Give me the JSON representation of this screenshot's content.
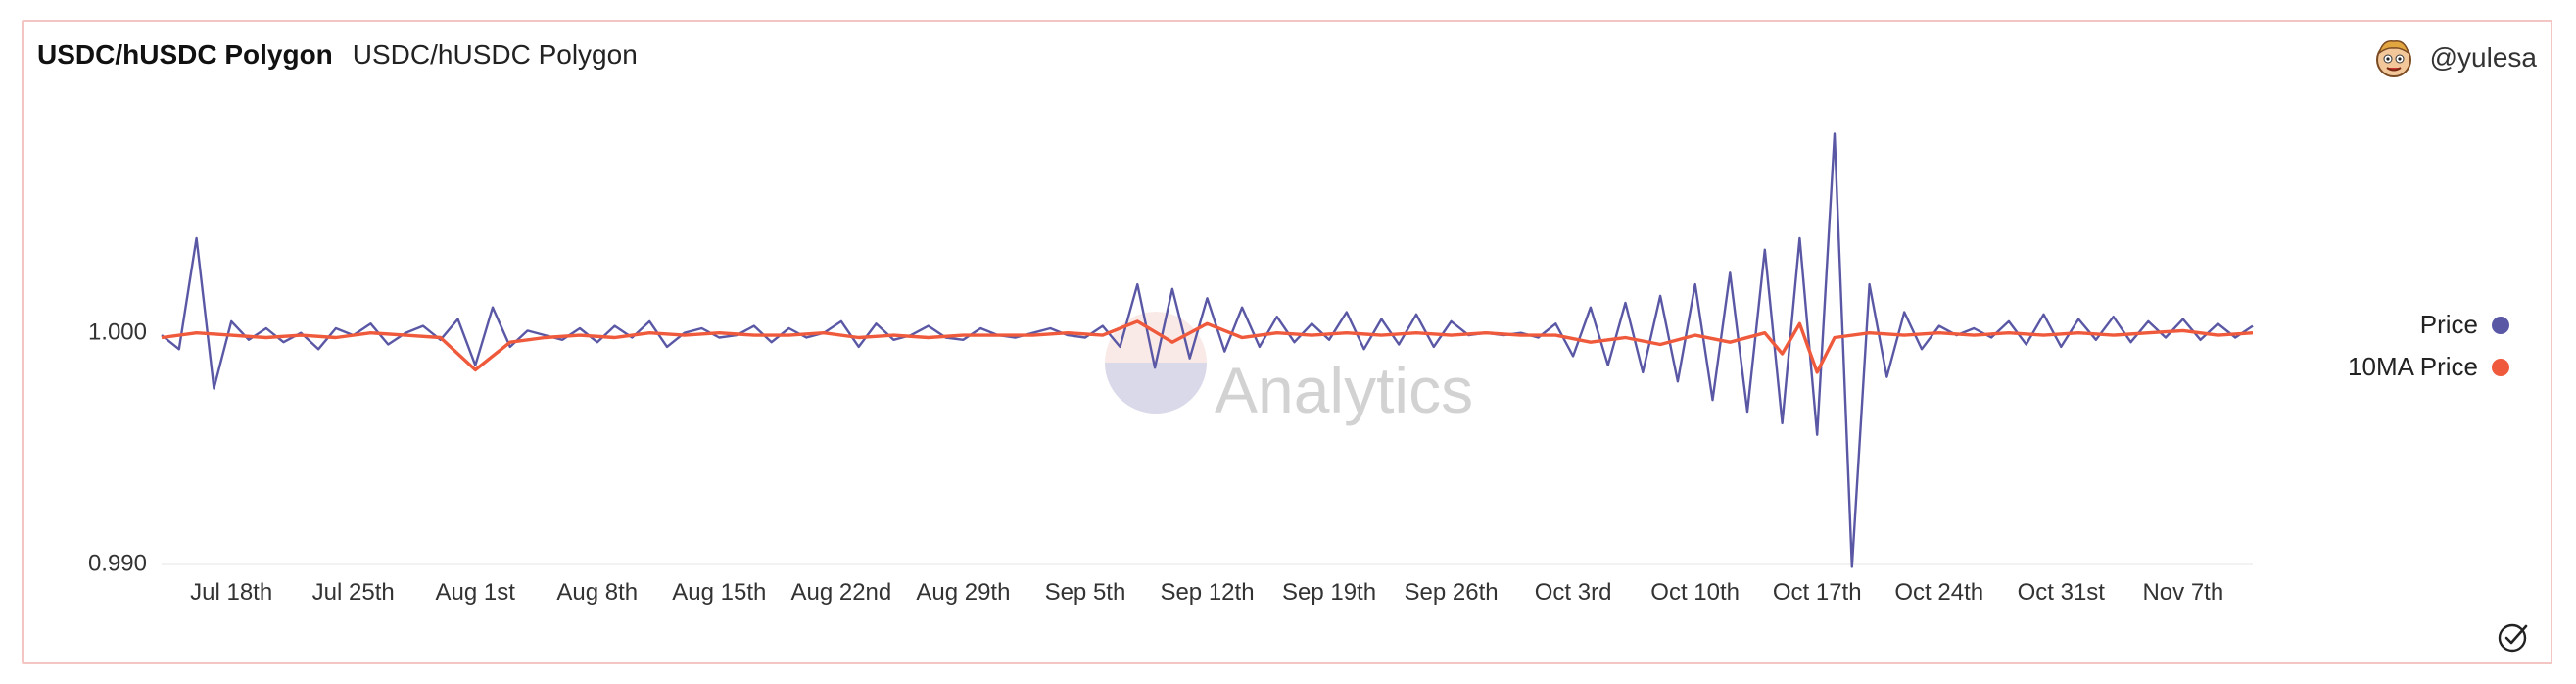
{
  "header": {
    "title": "USDC/hUSDC Polygon",
    "subtitle": "USDC/hUSDC Polygon"
  },
  "author": {
    "handle": "@yulesa",
    "avatar_icon": "cartoon-face-avatar"
  },
  "watermark": {
    "text": "Analytics"
  },
  "colors": {
    "price": "#5a58a5",
    "ma": "#f05a3c",
    "axis_text": "#333333",
    "border": "#f4c6c3"
  },
  "chart_data": {
    "type": "line",
    "title": "USDC/hUSDC Polygon",
    "xlabel": "",
    "ylabel": "",
    "ylim": [
      0.9899,
      1.0092
    ],
    "y_ticks": [
      {
        "value": 1.0,
        "label": "1.000"
      },
      {
        "value": 0.99,
        "label": "0.990"
      }
    ],
    "x_start": "2022-07-14",
    "x_end": "2022-11-11",
    "x_ticks": [
      {
        "date": "2022-07-18",
        "label": "Jul 18th"
      },
      {
        "date": "2022-07-25",
        "label": "Jul 25th"
      },
      {
        "date": "2022-08-01",
        "label": "Aug 1st"
      },
      {
        "date": "2022-08-08",
        "label": "Aug 8th"
      },
      {
        "date": "2022-08-15",
        "label": "Aug 15th"
      },
      {
        "date": "2022-08-22",
        "label": "Aug 22nd"
      },
      {
        "date": "2022-08-29",
        "label": "Aug 29th"
      },
      {
        "date": "2022-09-05",
        "label": "Sep 5th"
      },
      {
        "date": "2022-09-12",
        "label": "Sep 12th"
      },
      {
        "date": "2022-09-19",
        "label": "Sep 19th"
      },
      {
        "date": "2022-09-26",
        "label": "Sep 26th"
      },
      {
        "date": "2022-10-03",
        "label": "Oct 3rd"
      },
      {
        "date": "2022-10-10",
        "label": "Oct 10th"
      },
      {
        "date": "2022-10-17",
        "label": "Oct 17th"
      },
      {
        "date": "2022-10-24",
        "label": "Oct 24th"
      },
      {
        "date": "2022-10-31",
        "label": "Oct 31st"
      },
      {
        "date": "2022-11-07",
        "label": "Nov 7th"
      }
    ],
    "grid": false,
    "legend_position": "right",
    "series": [
      {
        "name": "Price",
        "color": "#5a58a5",
        "x": [
          "2022-07-14",
          "2022-07-15",
          "2022-07-16",
          "2022-07-17",
          "2022-07-18",
          "2022-07-19",
          "2022-07-20",
          "2022-07-21",
          "2022-07-22",
          "2022-07-23",
          "2022-07-24",
          "2022-07-25",
          "2022-07-26",
          "2022-07-27",
          "2022-07-28",
          "2022-07-29",
          "2022-07-30",
          "2022-07-31",
          "2022-08-01",
          "2022-08-02",
          "2022-08-03",
          "2022-08-04",
          "2022-08-05",
          "2022-08-06",
          "2022-08-07",
          "2022-08-08",
          "2022-08-09",
          "2022-08-10",
          "2022-08-11",
          "2022-08-12",
          "2022-08-13",
          "2022-08-14",
          "2022-08-15",
          "2022-08-16",
          "2022-08-17",
          "2022-08-18",
          "2022-08-19",
          "2022-08-20",
          "2022-08-21",
          "2022-08-22",
          "2022-08-23",
          "2022-08-24",
          "2022-08-25",
          "2022-08-26",
          "2022-08-27",
          "2022-08-28",
          "2022-08-29",
          "2022-08-30",
          "2022-08-31",
          "2022-09-01",
          "2022-09-02",
          "2022-09-03",
          "2022-09-04",
          "2022-09-05",
          "2022-09-06",
          "2022-09-07",
          "2022-09-08",
          "2022-09-09",
          "2022-09-10",
          "2022-09-11",
          "2022-09-12",
          "2022-09-13",
          "2022-09-14",
          "2022-09-15",
          "2022-09-16",
          "2022-09-17",
          "2022-09-18",
          "2022-09-19",
          "2022-09-20",
          "2022-09-21",
          "2022-09-22",
          "2022-09-23",
          "2022-09-24",
          "2022-09-25",
          "2022-09-26",
          "2022-09-27",
          "2022-09-28",
          "2022-09-29",
          "2022-09-30",
          "2022-10-01",
          "2022-10-02",
          "2022-10-03",
          "2022-10-04",
          "2022-10-05",
          "2022-10-06",
          "2022-10-07",
          "2022-10-08",
          "2022-10-09",
          "2022-10-10",
          "2022-10-11",
          "2022-10-12",
          "2022-10-13",
          "2022-10-14",
          "2022-10-15",
          "2022-10-16",
          "2022-10-17",
          "2022-10-18",
          "2022-10-19",
          "2022-10-20",
          "2022-10-21",
          "2022-10-22",
          "2022-10-23",
          "2022-10-24",
          "2022-10-25",
          "2022-10-26",
          "2022-10-27",
          "2022-10-28",
          "2022-10-29",
          "2022-10-30",
          "2022-10-31",
          "2022-11-01",
          "2022-11-02",
          "2022-11-03",
          "2022-11-04",
          "2022-11-05",
          "2022-11-06",
          "2022-11-07",
          "2022-11-08",
          "2022-11-09",
          "2022-11-10",
          "2022-11-11"
        ],
        "y": [
          0.9998,
          0.9992,
          1.004,
          0.9975,
          1.0004,
          0.9996,
          1.0001,
          0.9995,
          0.9999,
          0.9992,
          1.0001,
          0.9998,
          1.0003,
          0.9994,
          0.9999,
          1.0002,
          0.9996,
          1.0005,
          0.9985,
          1.001,
          0.9993,
          1.0,
          0.9998,
          0.9996,
          1.0001,
          0.9995,
          1.0002,
          0.9997,
          1.0004,
          0.9993,
          0.9999,
          1.0001,
          0.9997,
          0.9998,
          1.0002,
          0.9995,
          1.0001,
          0.9997,
          0.9999,
          1.0004,
          0.9993,
          1.0003,
          0.9996,
          0.9998,
          1.0002,
          0.9997,
          0.9996,
          1.0001,
          0.9998,
          0.9997,
          0.9999,
          1.0001,
          0.9998,
          0.9997,
          1.0002,
          0.9993,
          1.002,
          0.9984,
          1.0018,
          0.9988,
          1.0014,
          0.9991,
          1.001,
          0.9993,
          1.0006,
          0.9995,
          1.0003,
          0.9996,
          1.0008,
          0.9992,
          1.0005,
          0.9994,
          1.0007,
          0.9993,
          1.0004,
          0.9998,
          0.9999,
          0.9998,
          0.9999,
          0.9997,
          1.0003,
          0.9989,
          1.001,
          0.9985,
          1.0012,
          0.9982,
          1.0015,
          0.9978,
          1.002,
          0.997,
          1.0025,
          0.9965,
          1.0035,
          0.996,
          1.004,
          0.9955,
          1.0085,
          0.9898,
          1.002,
          0.998,
          1.0008,
          0.9992,
          1.0002,
          0.9998,
          1.0001,
          0.9997,
          1.0004,
          0.9994,
          1.0007,
          0.9993,
          1.0005,
          0.9996,
          1.0006,
          0.9995,
          1.0004,
          0.9997,
          1.0005,
          0.9996,
          1.0003,
          0.9997,
          1.0002
        ]
      },
      {
        "name": "10MA Price",
        "color": "#f05a3c",
        "x": [
          "2022-07-14",
          "2022-07-16",
          "2022-07-18",
          "2022-07-20",
          "2022-07-22",
          "2022-07-24",
          "2022-07-26",
          "2022-07-28",
          "2022-07-30",
          "2022-08-01",
          "2022-08-03",
          "2022-08-05",
          "2022-08-07",
          "2022-08-09",
          "2022-08-11",
          "2022-08-13",
          "2022-08-15",
          "2022-08-17",
          "2022-08-19",
          "2022-08-21",
          "2022-08-23",
          "2022-08-25",
          "2022-08-27",
          "2022-08-29",
          "2022-08-31",
          "2022-09-02",
          "2022-09-04",
          "2022-09-06",
          "2022-09-08",
          "2022-09-10",
          "2022-09-12",
          "2022-09-14",
          "2022-09-16",
          "2022-09-18",
          "2022-09-20",
          "2022-09-22",
          "2022-09-24",
          "2022-09-26",
          "2022-09-28",
          "2022-09-30",
          "2022-10-02",
          "2022-10-04",
          "2022-10-06",
          "2022-10-08",
          "2022-10-10",
          "2022-10-12",
          "2022-10-14",
          "2022-10-15",
          "2022-10-16",
          "2022-10-17",
          "2022-10-18",
          "2022-10-20",
          "2022-10-22",
          "2022-10-24",
          "2022-10-26",
          "2022-10-28",
          "2022-10-30",
          "2022-11-01",
          "2022-11-03",
          "2022-11-05",
          "2022-11-07",
          "2022-11-09",
          "2022-11-11"
        ],
        "y": [
          0.9997,
          0.9999,
          0.9998,
          0.9997,
          0.9998,
          0.9997,
          0.9999,
          0.9998,
          0.9997,
          0.9983,
          0.9995,
          0.9997,
          0.9998,
          0.9997,
          0.9999,
          0.9998,
          0.9999,
          0.9998,
          0.9998,
          0.9999,
          0.9997,
          0.9998,
          0.9997,
          0.9998,
          0.9998,
          0.9998,
          0.9999,
          0.9998,
          1.0004,
          0.9995,
          1.0003,
          0.9997,
          0.9999,
          0.9998,
          0.9999,
          0.9998,
          0.9999,
          0.9998,
          0.9999,
          0.9998,
          0.9998,
          0.9995,
          0.9997,
          0.9994,
          0.9998,
          0.9995,
          0.9999,
          0.999,
          1.0003,
          0.9982,
          0.9997,
          0.9999,
          0.9998,
          0.9999,
          0.9998,
          0.9999,
          0.9998,
          0.9999,
          0.9998,
          0.9999,
          1.0,
          0.9998,
          0.9999
        ]
      }
    ]
  },
  "legend": [
    {
      "label": "Price",
      "color": "#5a58a5"
    },
    {
      "label": "10MA Price",
      "color": "#f05a3c"
    }
  ]
}
